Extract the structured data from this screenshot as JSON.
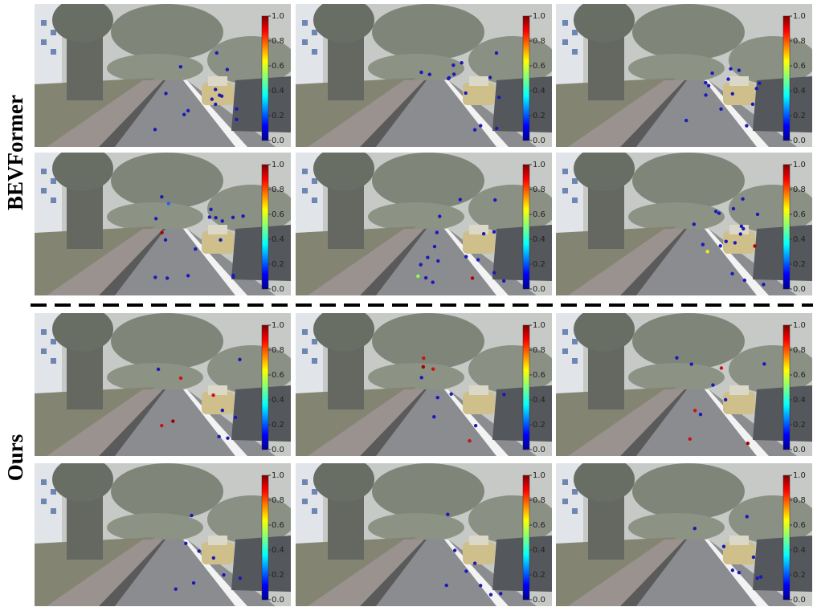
{
  "rows": [
    {
      "label": "BEVFormer"
    },
    {
      "label": "Ours"
    }
  ],
  "colorbar": {
    "ticks": [
      {
        "value": 0,
        "label": "0.0"
      },
      {
        "value": 0.2,
        "label": "0.2"
      },
      {
        "value": 0.4,
        "label": "0.4"
      },
      {
        "value": 0.6,
        "label": "0.6"
      },
      {
        "value": 0.8,
        "label": "0.8"
      },
      {
        "value": 1,
        "label": "1.0"
      }
    ]
  }
}
